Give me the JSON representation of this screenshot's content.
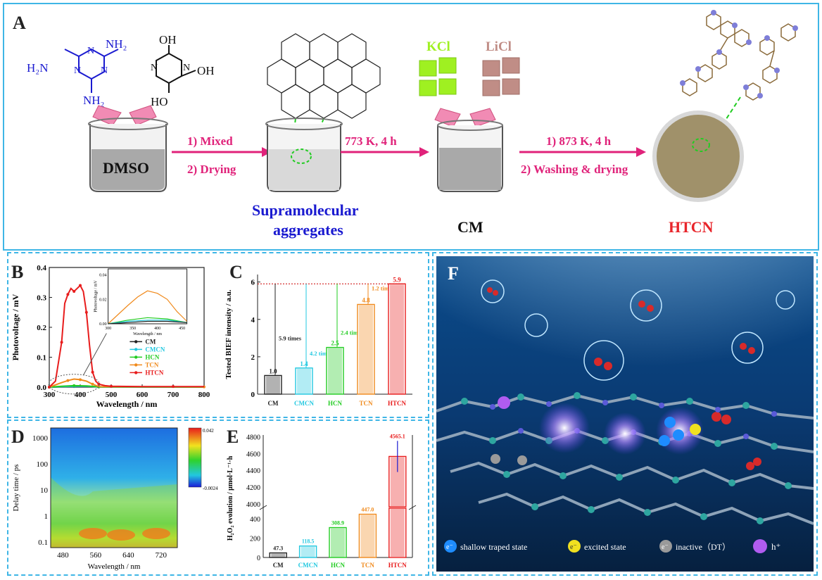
{
  "panels": {
    "a": "A",
    "b": "B",
    "c": "C",
    "d": "D",
    "e": "E",
    "f": "F"
  },
  "panelA": {
    "melamine_groups": [
      "NH₂",
      "H₂N",
      "NH₂"
    ],
    "ring_n": "N",
    "cyanuric_groups": [
      "OH",
      "HO",
      "OH"
    ],
    "solvent": "DMSO",
    "step1": [
      "1) Mixed",
      "2) Drying"
    ],
    "step2": "773 K, 4 h",
    "step3": [
      "1) 873 K, 4 h",
      "2) Washing & drying"
    ],
    "salt1": "KCl",
    "salt2": "LiCl",
    "label_supra": [
      "Supramolecular",
      "aggregates"
    ],
    "label_cm": "CM",
    "label_htcn": "HTCN",
    "colors": {
      "supra": "#1a1ad0",
      "htcn": "#e8242a",
      "arrow": "#e0227a",
      "kcl": "#9ff021",
      "licl": "#c08d86"
    }
  },
  "chart_data": [
    {
      "panel": "B",
      "type": "line",
      "xlabel": "Wavelength / nm",
      "ylabel": "Photovoltage / mV",
      "xlim": [
        300,
        800
      ],
      "ylim": [
        0,
        0.4
      ],
      "xticks": [
        300,
        400,
        500,
        600,
        700,
        800
      ],
      "yticks": [
        0.0,
        0.1,
        0.2,
        0.3,
        0.4
      ],
      "legend": [
        "CM",
        "CMCN",
        "HCN",
        "TCN",
        "HTCN"
      ],
      "legend_colors": [
        "#222222",
        "#22c8e0",
        "#22cc22",
        "#f08a1c",
        "#e81c1c"
      ],
      "series": [
        {
          "name": "HTCN",
          "x": [
            300,
            320,
            340,
            350,
            360,
            370,
            380,
            390,
            400,
            410,
            420,
            430,
            440,
            450,
            460,
            480,
            500,
            600,
            700,
            800
          ],
          "y": [
            0.0,
            0.02,
            0.15,
            0.28,
            0.31,
            0.33,
            0.32,
            0.33,
            0.34,
            0.32,
            0.25,
            0.14,
            0.05,
            0.02,
            0.01,
            0.005,
            0.003,
            0.002,
            0.002,
            0.002
          ]
        },
        {
          "name": "TCN",
          "x": [
            300,
            340,
            360,
            380,
            400,
            420,
            440,
            460,
            800
          ],
          "y": [
            0.0,
            0.015,
            0.022,
            0.027,
            0.025,
            0.02,
            0.01,
            0.002,
            0.001
          ]
        },
        {
          "name": "HCN",
          "x": [
            300,
            340,
            380,
            420,
            460,
            800
          ],
          "y": [
            0.0,
            0.003,
            0.005,
            0.004,
            0.001,
            0.0
          ]
        },
        {
          "name": "CMCN",
          "x": [
            300,
            340,
            380,
            420,
            460,
            800
          ],
          "y": [
            0.0,
            0.002,
            0.003,
            0.003,
            0.001,
            0.0
          ]
        },
        {
          "name": "CM",
          "x": [
            300,
            340,
            380,
            420,
            460,
            800
          ],
          "y": [
            0.0,
            0.001,
            0.002,
            0.002,
            0.001,
            0.0
          ]
        }
      ],
      "inset": {
        "xlabel": "Wavelength / nm",
        "ylabel": "Photovoltage / mV",
        "xticks": [
          300,
          350,
          400,
          450
        ],
        "yticks": [
          0.0,
          0.02,
          0.04
        ],
        "ylim": [
          0,
          0.045
        ]
      }
    },
    {
      "panel": "C",
      "type": "bar",
      "ylabel": "Tested BIEF intensity / a.u.",
      "ylim": [
        0,
        6.4
      ],
      "yticks": [
        0,
        2,
        4,
        6
      ],
      "categories": [
        "CM",
        "CMCN",
        "HCN",
        "TCN",
        "HTCN"
      ],
      "values": [
        1.0,
        1.4,
        2.5,
        4.8,
        5.9
      ],
      "value_labels": [
        "1.0",
        "1.4",
        "2.5",
        "4.8",
        "5.9"
      ],
      "colors": [
        "#222222",
        "#22c8e0",
        "#22cc22",
        "#f08a1c",
        "#e81c1c"
      ],
      "annotations": [
        "5.9 times",
        "4.2 times",
        "2.4 times",
        "1.2 times"
      ]
    },
    {
      "panel": "D",
      "type": "heatmap",
      "xlabel": "Wavelength / nm",
      "ylabel": "Delay time / ps",
      "xticks": [
        480,
        560,
        640,
        720
      ],
      "yticks": [
        "1000",
        "100",
        "10",
        "1",
        "0.1"
      ],
      "colorbar": [
        "0.042",
        "-0.0024"
      ]
    },
    {
      "panel": "E",
      "type": "bar",
      "ylabel": "H₂O₂ evolution / μmol·L⁻¹·h",
      "yticks_low": [
        0,
        200,
        400
      ],
      "yticks_high": [
        4000,
        4200,
        4400,
        4600,
        4800
      ],
      "categories": [
        "CM",
        "CMCN",
        "HCN",
        "TCN",
        "HTCN"
      ],
      "values": [
        47.3,
        118.5,
        308.9,
        447.0,
        4565.1
      ],
      "value_labels": [
        "47.3",
        "118.5",
        "308.9",
        "447.0",
        "4565.1"
      ],
      "colors": [
        "#222222",
        "#22c8e0",
        "#22cc22",
        "#f08a1c",
        "#e81c1c"
      ]
    }
  ],
  "panelF": {
    "legend": [
      {
        "sym": "e⁻",
        "label": "shallow traped state",
        "color": "#1e8cff"
      },
      {
        "sym": "e⁻",
        "label": "excited state",
        "color": "#f0e020"
      },
      {
        "sym": "e⁻",
        "label": "inactive（DT）",
        "color": "#9a9a9a"
      },
      {
        "sym": "",
        "label": "h⁺",
        "color": "#b05cf0"
      }
    ]
  }
}
